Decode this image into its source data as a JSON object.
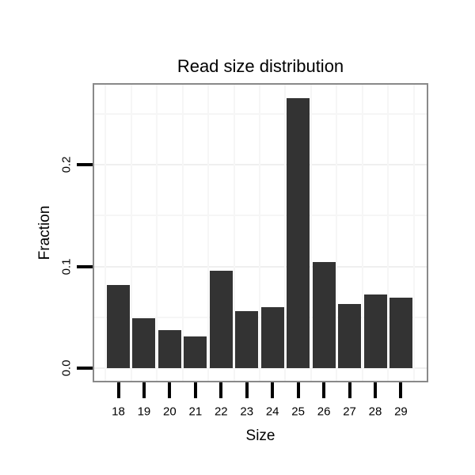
{
  "chart_data": {
    "type": "bar",
    "title": "Read size distribution",
    "xlabel": "Size",
    "ylabel": "Fraction",
    "categories": [
      "18",
      "19",
      "20",
      "21",
      "22",
      "23",
      "24",
      "25",
      "26",
      "27",
      "28",
      "29"
    ],
    "values": [
      0.082,
      0.049,
      0.037,
      0.031,
      0.096,
      0.056,
      0.06,
      0.265,
      0.104,
      0.063,
      0.072,
      0.069
    ],
    "y_ticks": {
      "labels": [
        "0.0",
        "0.1",
        "0.2"
      ],
      "values": [
        0,
        0.1,
        0.2
      ]
    },
    "y_minor_gridlines": [
      0.05,
      0.15,
      0.25
    ],
    "ylim": [
      0,
      0.28
    ],
    "grid": "horizontal major+minor and vertical between categories, very faint",
    "legend_position": "none",
    "colors": {
      "bar_fill": "#333333",
      "panel_border": "#898989",
      "grid_major": "#efefef",
      "grid_minor": "#f6f6f6",
      "tick": "#000000",
      "text": "#000000",
      "background": "#ffffff"
    }
  }
}
